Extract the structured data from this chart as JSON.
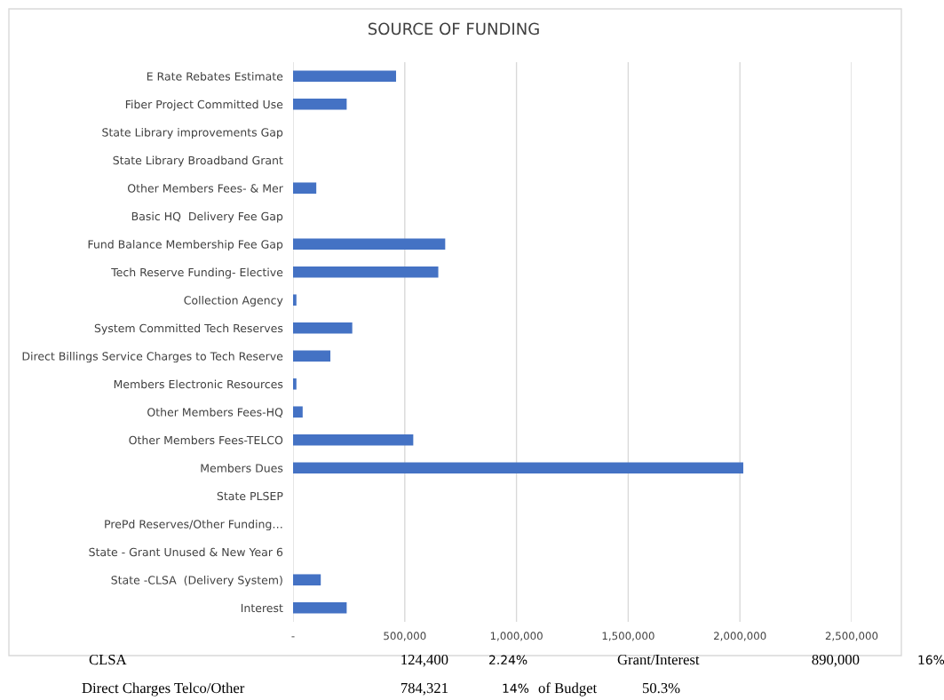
{
  "chart_data": {
    "type": "bar",
    "orientation": "horizontal",
    "title": "SOURCE OF FUNDING",
    "categories": [
      "E Rate Rebates Estimate",
      "Fiber Project Committed Use",
      "State Library improvements Gap",
      "State Library Broadband Grant",
      "Other Members Fees- & Mer",
      "Basic HQ  Delivery Fee Gap",
      "Fund Balance Membership Fee Gap",
      "Tech Reserve Funding- Elective",
      "Collection Agency",
      "System Committed Tech Reserves",
      "Direct Billings Service Charges to Tech Reserve",
      "Members Electronic Resources",
      "Other Members Fees-HQ",
      "Other Members Fees-TELCO",
      "Members Dues",
      "State PLSEP",
      "PrePd Reserves/Other Funding…",
      "State - Grant Unused & New Year 6",
      "State -CLSA  (Delivery System)",
      "Interest"
    ],
    "values": [
      461000,
      240000,
      0,
      0,
      104000,
      0,
      681000,
      650000,
      15000,
      265000,
      167000,
      15000,
      43000,
      538000,
      2015000,
      0,
      0,
      0,
      124000,
      240000
    ],
    "color": "#4472c4",
    "xlim": [
      0,
      2500000
    ],
    "xticks": [
      {
        "value": 0,
        "label": "-"
      },
      {
        "value": 500000,
        "label": "500,000"
      },
      {
        "value": 1000000,
        "label": "1,000,000"
      },
      {
        "value": 1500000,
        "label": "1,500,000"
      },
      {
        "value": 2000000,
        "label": "2,000,000"
      },
      {
        "value": 2500000,
        "label": "2,500,000"
      }
    ],
    "grid": "x",
    "legend": false,
    "annotations": [
      "CLSA",
      "124,400",
      "2.24%",
      "Grant/Interest",
      "890,000",
      "16%",
      "Direct Charges Telco/Other",
      "784,321",
      "14%",
      "of Budget",
      "50.3%"
    ]
  }
}
